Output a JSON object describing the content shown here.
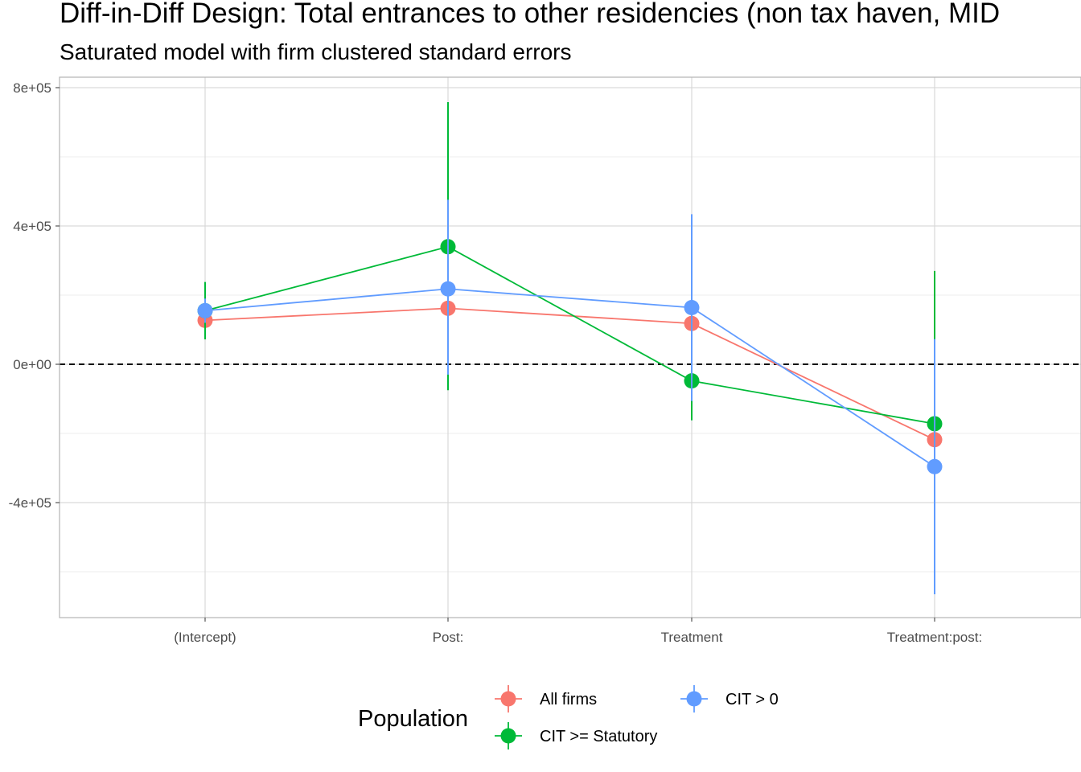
{
  "chart_data": {
    "type": "line",
    "title": "Diff-in-Diff Design: Total entrances to other residencies (non tax haven, MID",
    "subtitle": "Saturated model with firm clustered standard errors",
    "xlabel": "",
    "ylabel": "",
    "categories": [
      "(Intercept)",
      "Post:",
      "Treatment",
      "Treatment:post:"
    ],
    "ylim": [
      -730000,
      810000
    ],
    "y_ticks": [
      800000,
      400000,
      0,
      -400000
    ],
    "y_tick_labels": [
      "8e+05",
      "4e+05",
      "0e+00",
      "-4e+05"
    ],
    "grid": true,
    "reference_line": {
      "y": 0,
      "style": "dashed",
      "color": "#000000"
    },
    "legend": {
      "title": "Population",
      "position": "bottom"
    },
    "series": [
      {
        "name": "All firms",
        "color": "#F8766D",
        "values": [
          127000,
          162000,
          118000,
          -218000
        ],
        "lower": [
          82000,
          62000,
          48000,
          -262000
        ],
        "upper": [
          172000,
          262000,
          188000,
          -174000
        ]
      },
      {
        "name": "CIT >= Statutory",
        "color": "#00BA38",
        "values": [
          155000,
          340000,
          -48000,
          -172000
        ],
        "lower": [
          72000,
          -75000,
          -162000,
          -598000
        ],
        "upper": [
          238000,
          758000,
          66000,
          270000
        ]
      },
      {
        "name": "CIT > 0",
        "color": "#619CFF",
        "values": [
          155000,
          218000,
          164000,
          -296000
        ],
        "lower": [
          120000,
          -30000,
          -106000,
          -665000
        ],
        "upper": [
          190000,
          476000,
          434000,
          73000
        ]
      }
    ]
  }
}
